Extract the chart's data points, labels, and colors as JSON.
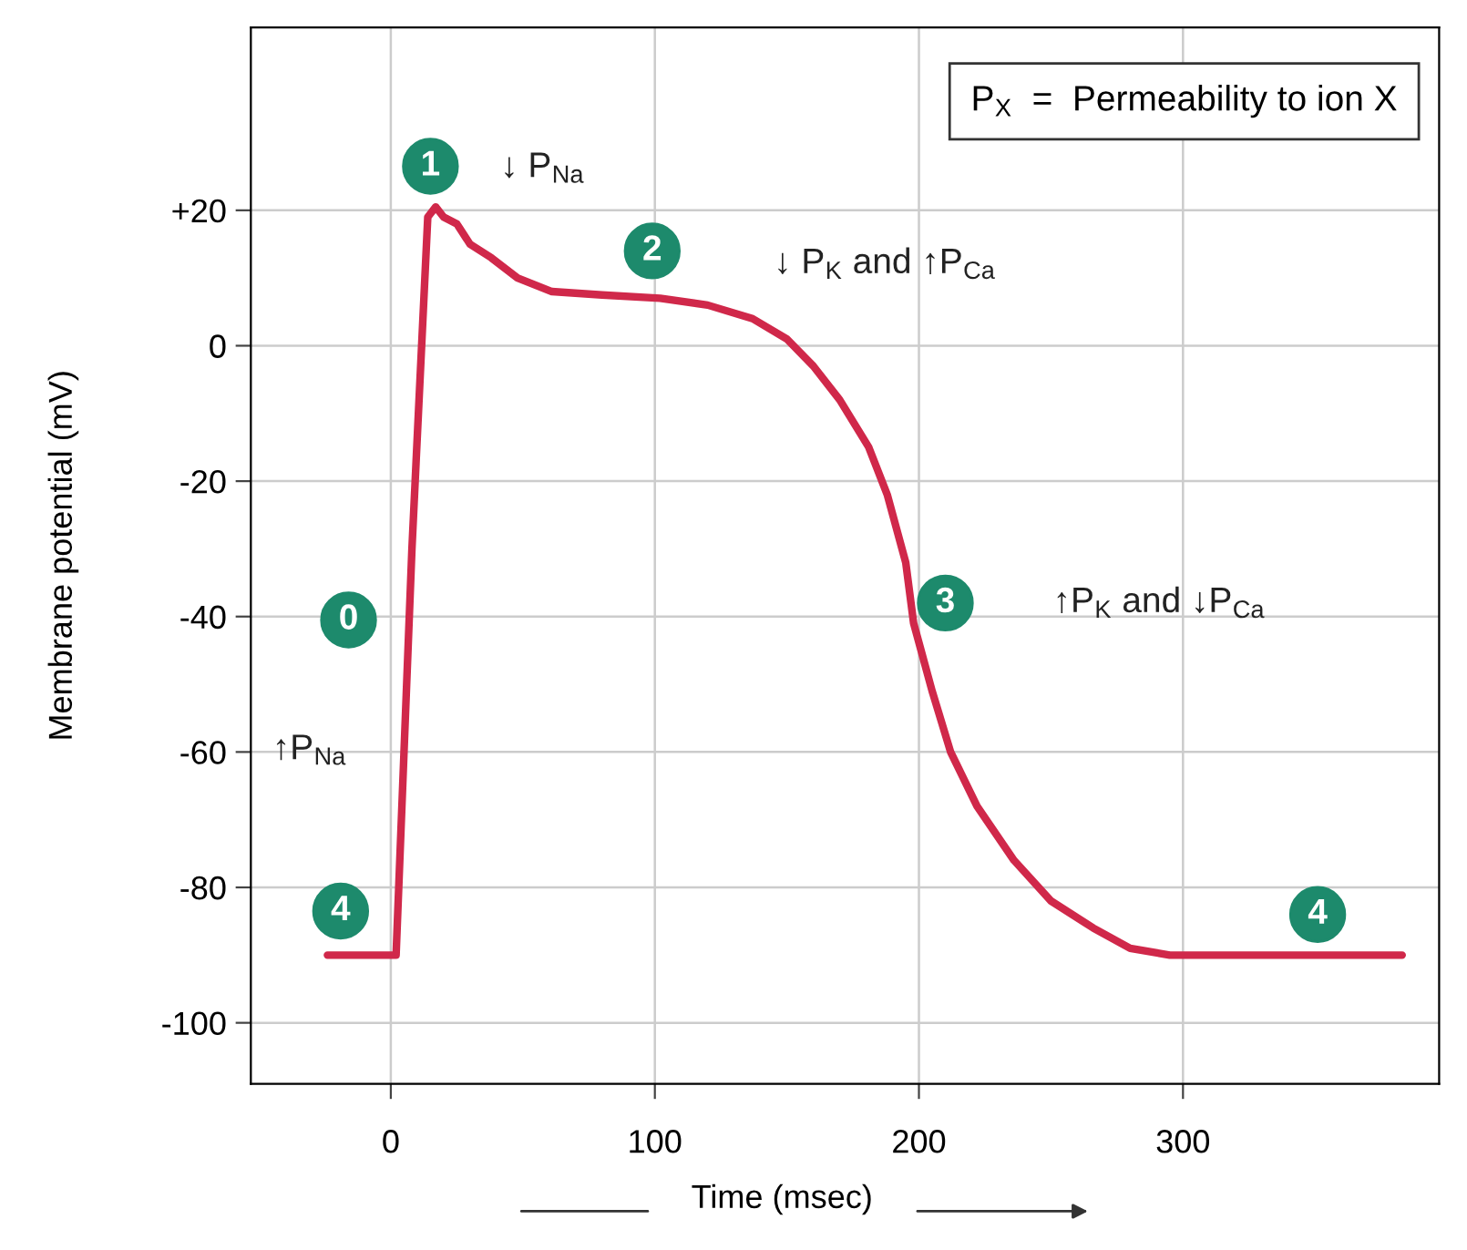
{
  "chart_data": {
    "type": "line",
    "xlabel": "Time (msec)",
    "ylabel": "Membrane potential (mV)",
    "xlim": [
      -53,
      397
    ],
    "ylim": [
      -109,
      47
    ],
    "xticks": [
      0,
      100,
      200,
      300
    ],
    "yticks": [
      {
        "value": 20,
        "label": "+20"
      },
      0,
      -20,
      -40,
      -60,
      -80,
      -100
    ],
    "grid": true,
    "marker": "none",
    "line_style": "solid",
    "series": [
      {
        "color": "#d0284a",
        "x": [
          -24,
          2,
          8,
          14,
          17,
          20,
          25,
          30,
          38,
          48,
          61,
          80,
          102,
          120,
          137,
          150,
          160,
          170,
          181,
          188,
          195,
          198,
          205,
          212,
          222,
          236,
          250,
          266,
          280,
          295,
          383
        ],
        "values": [
          -90,
          -90,
          -30,
          19,
          20.5,
          19,
          18,
          15,
          13,
          10,
          8,
          7.5,
          7,
          6,
          4,
          1,
          -3,
          -8,
          -15,
          -22,
          -32,
          -41,
          -51,
          -60,
          -68,
          -76,
          -82,
          -86,
          -89,
          -90,
          -90
        ]
      }
    ],
    "annotations": [
      {
        "text": "0",
        "x": -16,
        "y": -40.5
      },
      {
        "text": "1",
        "x": 15,
        "y": 26.5
      },
      {
        "text": "2",
        "x": 99,
        "y": 14
      },
      {
        "text": "3",
        "x": 210,
        "y": -38
      },
      {
        "text": "4",
        "x": -19,
        "y": -83.5
      },
      {
        "text": "4",
        "x": 351,
        "y": -84
      },
      "↑P$_{Na}$",
      "↓ P$_{Na}$",
      "↓ P$_{K}$ and ↑P$_{Ca}$",
      "↑P$_{K}$ and ↓P$_{Ca}$",
      "P$_{X}$  =  Permeability to ion X"
    ]
  }
}
